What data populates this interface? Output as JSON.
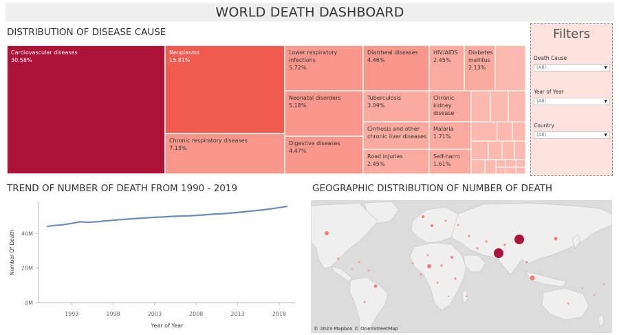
{
  "title": "WORLD DEATH DASHBOARD",
  "colors": {
    "tile_darkest": "#ad1338",
    "tile_dark": "#ef5b4f",
    "tile_mid": "#f8978c",
    "tile_light": "#fbaa9f",
    "tile_lightest": "#fdb9af",
    "line": "#6a8cb6",
    "filter_bg": "#fde2dd",
    "map_bg": "#dcdcdc",
    "land": "#efefef"
  },
  "treemap": {
    "title": "DISTRIBUTION OF DISEASE CAUSE",
    "tiles": [
      {
        "name": "Cardiovascular diseases",
        "value": "30.58%"
      },
      {
        "name": "Neoplasms",
        "value": "15.81%"
      },
      {
        "name": "Chronic respiratory diseases",
        "value": "7.13%"
      },
      {
        "name": "Lower respiratory\ninfections",
        "value": "5.72%"
      },
      {
        "name": "Neonatal disorders",
        "value": "5.18%"
      },
      {
        "name": "Digestive diseases",
        "value": "4.47%"
      },
      {
        "name": "Diarrheal diseases",
        "value": "4.46%"
      },
      {
        "name": "Tuberculosis",
        "value": "3.09%"
      },
      {
        "name": "Cirrhosis and other\nchronic liver diseases",
        "value": ""
      },
      {
        "name": "Road injuries",
        "value": "2.45%"
      },
      {
        "name": "HIV/AIDS",
        "value": "2.45%"
      },
      {
        "name": "Diabetes\nmellitus",
        "value": "2.13%"
      },
      {
        "name": "Chronic\nkidney\ndisease",
        "value": ""
      },
      {
        "name": "Malaria",
        "value": "1.71%"
      },
      {
        "name": "Self-harm",
        "value": "1.61%"
      }
    ]
  },
  "filters": {
    "title": "Filters",
    "items": [
      {
        "label": "Death Cause",
        "value": "(All)"
      },
      {
        "label": "Year of Year",
        "value": "(All)"
      },
      {
        "label": "Country",
        "value": "(All)"
      }
    ]
  },
  "chart_data": {
    "type": "line",
    "title": "TREND OF NUMBER OF DEATH FROM 1990 - 2019",
    "xlabel": "Year of Year",
    "ylabel": "Number Of Death",
    "xticks": [
      "1993",
      "1998",
      "2003",
      "2008",
      "2013",
      "2018"
    ],
    "yticks": [
      "0M",
      "20M",
      "40M"
    ],
    "ylim": [
      0,
      58
    ],
    "xlim": [
      1989,
      2020
    ],
    "grid": false,
    "series": [
      {
        "x": [
          1990,
          1991,
          1992,
          1993,
          1994,
          1995,
          1996,
          1997,
          1998,
          1999,
          2000,
          2001,
          2002,
          2003,
          2004,
          2005,
          2006,
          2007,
          2008,
          2009,
          2010,
          2011,
          2012,
          2013,
          2014,
          2015,
          2016,
          2017,
          2018,
          2019
        ],
        "values": [
          44.0,
          44.6,
          45.0,
          45.8,
          46.7,
          46.4,
          46.7,
          47.2,
          47.6,
          48.0,
          48.3,
          48.7,
          49.0,
          49.3,
          49.5,
          49.8,
          50.0,
          50.1,
          50.4,
          50.7,
          51.1,
          51.3,
          51.7,
          52.1,
          52.6,
          53.1,
          53.6,
          54.2,
          54.9,
          55.6
        ]
      }
    ]
  },
  "map": {
    "title": "GEOGRAPHIC DISTRIBUTION OF NUMBER OF DEATH",
    "credit": "© 2023 Mapbox © OpenStreetMap"
  }
}
